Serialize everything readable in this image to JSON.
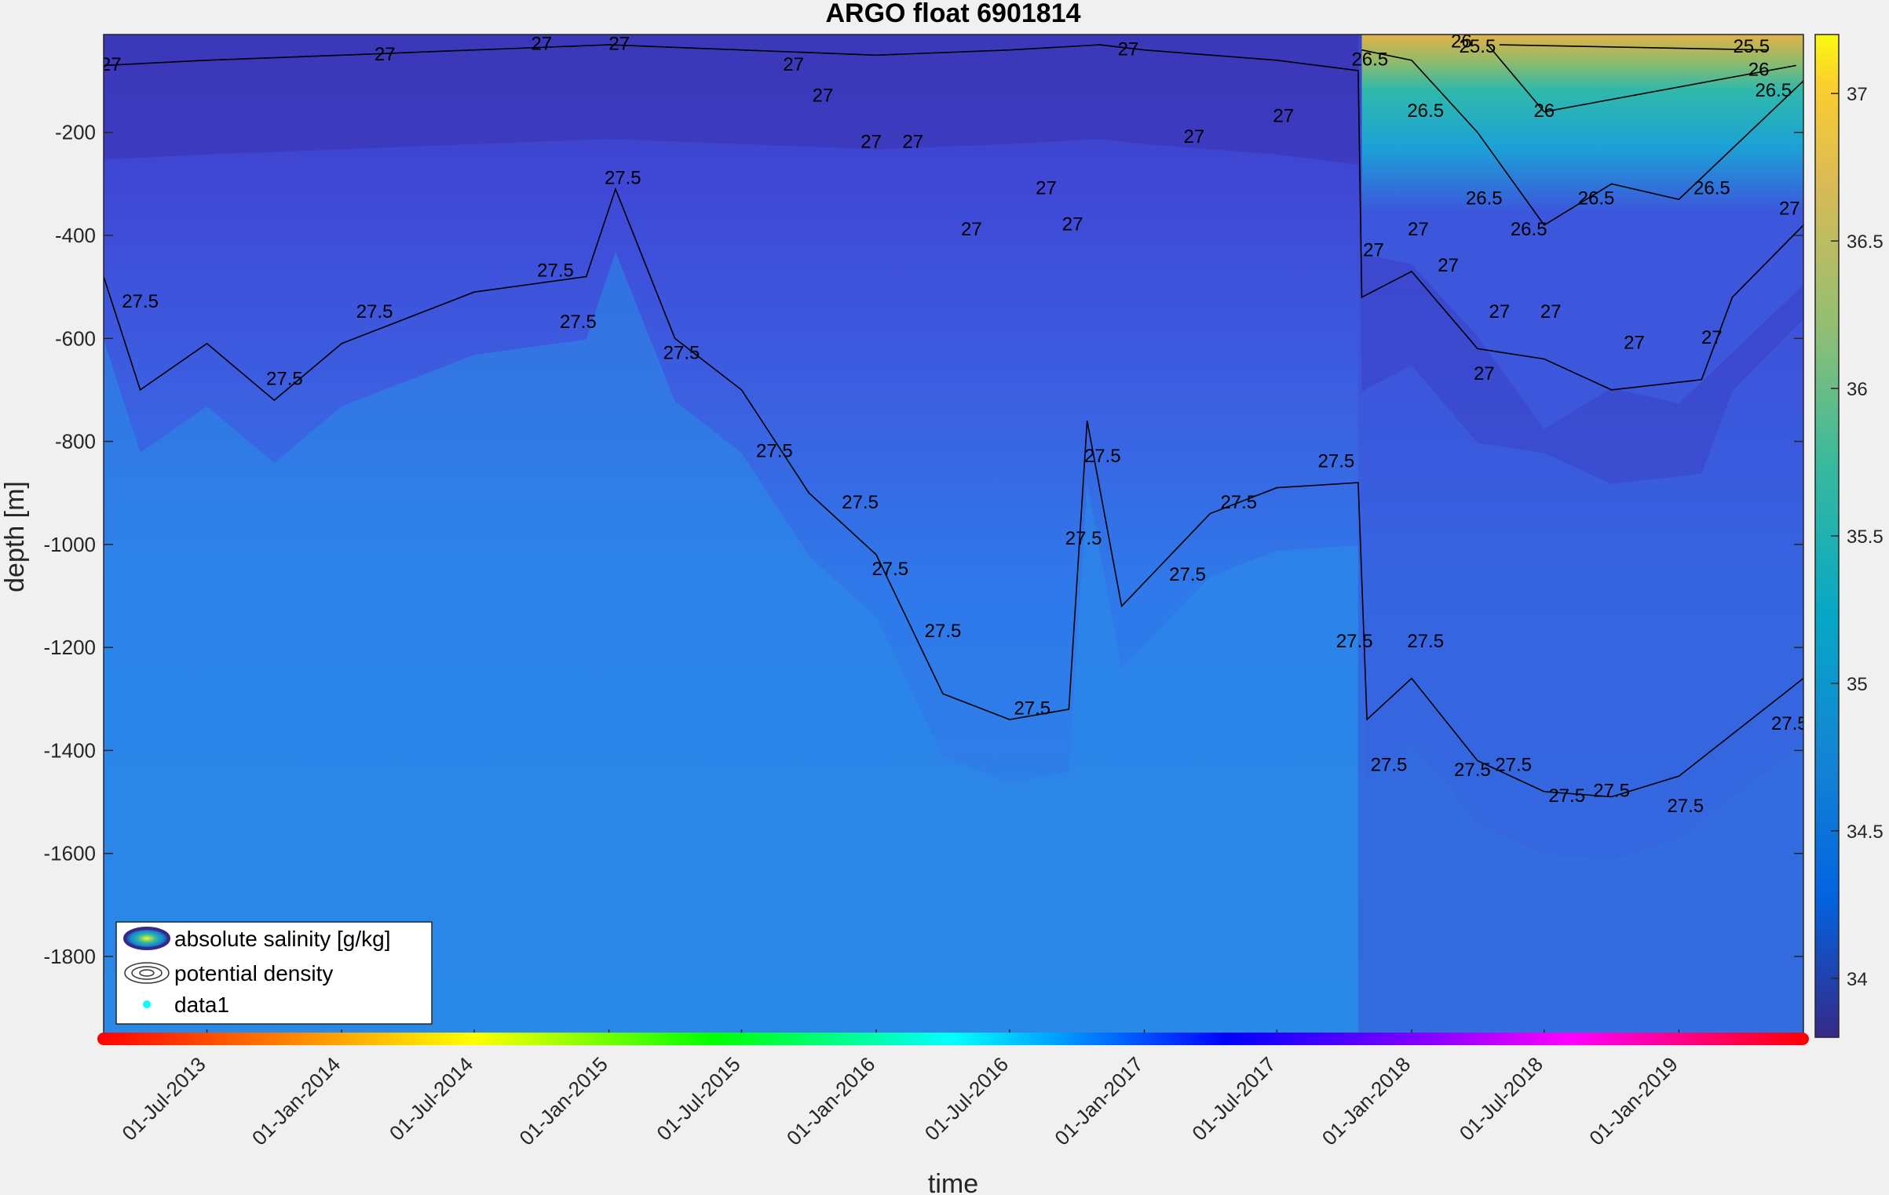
{
  "chart_data": {
    "type": "heatmap",
    "title": "ARGO float 6901814",
    "xlabel": "time",
    "ylabel": "depth [m]",
    "x_tick_labels": [
      "01-Jul-2013",
      "01-Jan-2014",
      "01-Jul-2014",
      "01-Jan-2015",
      "01-Jul-2015",
      "01-Jan-2016",
      "01-Jul-2016",
      "01-Jan-2017",
      "01-Jul-2017",
      "01-Jan-2018",
      "01-Jul-2018",
      "01-Jan-2019"
    ],
    "y_ticks": [
      -200,
      -400,
      -600,
      -800,
      -1000,
      -1200,
      -1400,
      -1600,
      -1800
    ],
    "y_tick_labels": [
      "-200",
      "-400",
      "-600",
      "-800",
      "-1000",
      "-1200",
      "-1400",
      "-1600",
      "-1800"
    ],
    "ylim": [
      -1960,
      -10
    ],
    "xlim": [
      "2013-02-10",
      "2019-06-20"
    ],
    "colorbar": {
      "ticks": [
        34,
        34.5,
        35,
        35.5,
        36,
        36.5,
        37
      ],
      "tick_labels": [
        "34",
        "34.5",
        "35",
        "35.5",
        "36",
        "36.5",
        "37"
      ],
      "range": [
        33.8,
        37.2
      ],
      "colormap": "parula"
    },
    "legend": {
      "placement": "bottom-left",
      "entries": [
        "absolute salinity [g/kg]",
        "potential density",
        "data1"
      ]
    },
    "contour_levels": [
      {
        "label": "27",
        "points": [
          [
            "2013-02-10",
            -70
          ],
          [
            "2013-07-01",
            -60
          ],
          [
            "2014-01-01",
            -50
          ],
          [
            "2014-07-01",
            -40
          ],
          [
            "2015-01-01",
            -30
          ],
          [
            "2015-07-01",
            -40
          ],
          [
            "2016-01-01",
            -50
          ],
          [
            "2016-07-01",
            -40
          ],
          [
            "2016-11-01",
            -30
          ],
          [
            "2017-01-01",
            -40
          ],
          [
            "2017-07-01",
            -60
          ],
          [
            "2017-10-20",
            -80
          ],
          [
            "2017-10-25",
            -520
          ],
          [
            "2018-01-01",
            -470
          ],
          [
            "2018-04-01",
            -620
          ],
          [
            "2018-07-01",
            -640
          ],
          [
            "2018-10-01",
            -700
          ],
          [
            "2019-02-01",
            -680
          ],
          [
            "2019-03-15",
            -520
          ],
          [
            "2019-06-20",
            -380
          ]
        ]
      },
      {
        "label": "27.5",
        "points": [
          [
            "2013-02-10",
            -480
          ],
          [
            "2013-04-01",
            -700
          ],
          [
            "2013-07-01",
            -610
          ],
          [
            "2013-10-01",
            -720
          ],
          [
            "2014-01-01",
            -610
          ],
          [
            "2014-07-01",
            -510
          ],
          [
            "2014-12-01",
            -480
          ],
          [
            "2015-01-10",
            -310
          ],
          [
            "2015-04-01",
            -600
          ],
          [
            "2015-07-01",
            -700
          ],
          [
            "2015-10-01",
            -900
          ],
          [
            "2016-01-01",
            -1020
          ],
          [
            "2016-04-01",
            -1290
          ],
          [
            "2016-07-01",
            -1340
          ],
          [
            "2016-09-20",
            -1320
          ],
          [
            "2016-10-15",
            -760
          ],
          [
            "2016-12-01",
            -1120
          ],
          [
            "2017-04-01",
            -940
          ],
          [
            "2017-07-01",
            -890
          ],
          [
            "2017-10-20",
            -880
          ],
          [
            "2017-11-01",
            -1340
          ],
          [
            "2018-01-01",
            -1260
          ],
          [
            "2018-04-01",
            -1420
          ],
          [
            "2018-07-01",
            -1480
          ],
          [
            "2018-10-01",
            -1490
          ],
          [
            "2019-01-01",
            -1450
          ],
          [
            "2019-06-20",
            -1260
          ]
        ]
      },
      {
        "label": "26.5",
        "points": [
          [
            "2017-10-25",
            -40
          ],
          [
            "2018-01-01",
            -60
          ],
          [
            "2018-04-01",
            -200
          ],
          [
            "2018-07-01",
            -380
          ],
          [
            "2018-10-01",
            -300
          ],
          [
            "2019-01-01",
            -330
          ],
          [
            "2019-06-20",
            -100
          ]
        ]
      },
      {
        "label": "26",
        "points": [
          [
            "2018-04-15",
            -30
          ],
          [
            "2018-07-01",
            -160
          ],
          [
            "2019-06-10",
            -70
          ]
        ]
      },
      {
        "label": "25.5",
        "points": [
          [
            "2018-05-01",
            -30
          ],
          [
            "2019-05-01",
            -40
          ]
        ]
      }
    ],
    "contour_label_positions": [
      {
        "level": "27",
        "x": "2013-02-20",
        "y": -80
      },
      {
        "level": "27",
        "x": "2014-03-01",
        "y": -60
      },
      {
        "level": "27",
        "x": "2014-10-01",
        "y": -40
      },
      {
        "level": "27",
        "x": "2015-01-15",
        "y": -40
      },
      {
        "level": "27",
        "x": "2015-09-10",
        "y": -80
      },
      {
        "level": "27",
        "x": "2015-10-20",
        "y": -140
      },
      {
        "level": "27",
        "x": "2015-12-25",
        "y": -230
      },
      {
        "level": "27",
        "x": "2016-02-20",
        "y": -230
      },
      {
        "level": "27",
        "x": "2016-08-20",
        "y": -320
      },
      {
        "level": "27",
        "x": "2016-05-10",
        "y": -400
      },
      {
        "level": "27",
        "x": "2016-09-25",
        "y": -390
      },
      {
        "level": "27",
        "x": "2016-12-10",
        "y": -50
      },
      {
        "level": "27",
        "x": "2017-03-10",
        "y": -220
      },
      {
        "level": "27",
        "x": "2017-07-10",
        "y": -180
      },
      {
        "level": "27",
        "x": "2017-11-10",
        "y": -440
      },
      {
        "level": "27",
        "x": "2018-01-10",
        "y": -400
      },
      {
        "level": "27",
        "x": "2018-02-20",
        "y": -470
      },
      {
        "level": "27",
        "x": "2018-05-01",
        "y": -560
      },
      {
        "level": "27",
        "x": "2018-04-10",
        "y": -680
      },
      {
        "level": "27",
        "x": "2018-07-10",
        "y": -560
      },
      {
        "level": "27",
        "x": "2018-11-01",
        "y": -620
      },
      {
        "level": "27",
        "x": "2019-02-15",
        "y": -610
      },
      {
        "level": "27",
        "x": "2019-06-01",
        "y": -360
      },
      {
        "level": "26.5",
        "x": "2017-11-05",
        "y": -70
      },
      {
        "level": "26.5",
        "x": "2018-01-20",
        "y": -170
      },
      {
        "level": "26.5",
        "x": "2018-04-10",
        "y": -340
      },
      {
        "level": "26.5",
        "x": "2018-06-10",
        "y": -400
      },
      {
        "level": "26.5",
        "x": "2018-09-10",
        "y": -340
      },
      {
        "level": "26.5",
        "x": "2019-02-15",
        "y": -320
      },
      {
        "level": "26.5",
        "x": "2019-05-10",
        "y": -130
      },
      {
        "level": "26",
        "x": "2018-03-10",
        "y": -35
      },
      {
        "level": "26",
        "x": "2018-07-01",
        "y": -170
      },
      {
        "level": "26",
        "x": "2019-04-20",
        "y": -90
      },
      {
        "level": "25.5",
        "x": "2018-04-01",
        "y": -45
      },
      {
        "level": "25.5",
        "x": "2019-04-10",
        "y": -45
      },
      {
        "level": "27.5",
        "x": "2013-04-01",
        "y": -540
      },
      {
        "level": "27.5",
        "x": "2013-10-15",
        "y": -690
      },
      {
        "level": "27.5",
        "x": "2014-02-15",
        "y": -560
      },
      {
        "level": "27.5",
        "x": "2014-10-20",
        "y": -480
      },
      {
        "level": "27.5",
        "x": "2014-11-20",
        "y": -580
      },
      {
        "level": "27.5",
        "x": "2015-01-20",
        "y": -300
      },
      {
        "level": "27.5",
        "x": "2015-04-10",
        "y": -640
      },
      {
        "level": "27.5",
        "x": "2015-08-15",
        "y": -830
      },
      {
        "level": "27.5",
        "x": "2015-12-10",
        "y": -930
      },
      {
        "level": "27.5",
        "x": "2016-01-20",
        "y": -1060
      },
      {
        "level": "27.5",
        "x": "2016-04-01",
        "y": -1180
      },
      {
        "level": "27.5",
        "x": "2016-08-01",
        "y": -1330
      },
      {
        "level": "27.5",
        "x": "2016-10-10",
        "y": -1000
      },
      {
        "level": "27.5",
        "x": "2016-11-05",
        "y": -840
      },
      {
        "level": "27.5",
        "x": "2017-03-01",
        "y": -1070
      },
      {
        "level": "27.5",
        "x": "2017-05-10",
        "y": -930
      },
      {
        "level": "27.5",
        "x": "2017-09-20",
        "y": -850
      },
      {
        "level": "27.5",
        "x": "2017-10-15",
        "y": -1200
      },
      {
        "level": "27.5",
        "x": "2018-01-20",
        "y": -1200
      },
      {
        "level": "27.5",
        "x": "2017-12-01",
        "y": -1440
      },
      {
        "level": "27.5",
        "x": "2018-03-25",
        "y": -1450
      },
      {
        "level": "27.5",
        "x": "2018-05-20",
        "y": -1440
      },
      {
        "level": "27.5",
        "x": "2018-08-01",
        "y": -1500
      },
      {
        "level": "27.5",
        "x": "2018-10-01",
        "y": -1490
      },
      {
        "level": "27.5",
        "x": "2019-01-10",
        "y": -1520
      },
      {
        "level": "27.5",
        "x": "2019-06-01",
        "y": -1360
      }
    ],
    "salinity_features": [
      {
        "x_start": "2013-02-10",
        "x_end": "2017-10-20",
        "surface": 34.0,
        "deep": 34.9,
        "description_depth_transition": -900
      },
      {
        "x_start": "2017-10-20",
        "x_end": "2019-06-20",
        "surface": 37.0,
        "deep": 34.9
      }
    ]
  },
  "colors": {
    "background": "#f0f0f0",
    "low": "#352a87",
    "high": "#f9fb0e",
    "contour_line": "#000000",
    "time_bar": "rainbow",
    "data_marker": "#00ffff"
  }
}
